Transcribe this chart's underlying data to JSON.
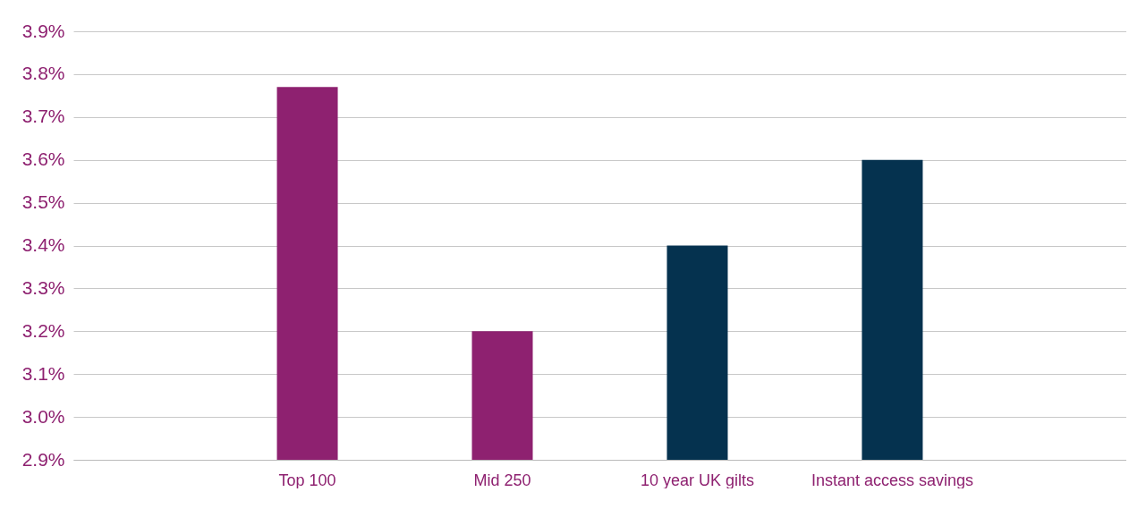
{
  "chart_data": {
    "type": "bar",
    "categories": [
      "Top 100",
      "Mid 250",
      "10 year UK gilts",
      "Instant access savings"
    ],
    "values": [
      3.77,
      3.2,
      3.4,
      3.6
    ],
    "colors": [
      "#8e2170",
      "#8e2170",
      "#05324f",
      "#05324f"
    ],
    "ylim": [
      2.9,
      3.9
    ],
    "yticks": [
      {
        "value": 2.9,
        "label": "2.9%"
      },
      {
        "value": 3.0,
        "label": "3.0%"
      },
      {
        "value": 3.1,
        "label": "3.1%"
      },
      {
        "value": 3.2,
        "label": "3.2%"
      },
      {
        "value": 3.3,
        "label": "3.3%"
      },
      {
        "value": 3.4,
        "label": "3.4%"
      },
      {
        "value": 3.5,
        "label": "3.5%"
      },
      {
        "value": 3.6,
        "label": "3.6%"
      },
      {
        "value": 3.7,
        "label": "3.7%"
      },
      {
        "value": 3.8,
        "label": "3.8%"
      },
      {
        "value": 3.9,
        "label": "3.9%"
      }
    ],
    "grid": "y"
  }
}
